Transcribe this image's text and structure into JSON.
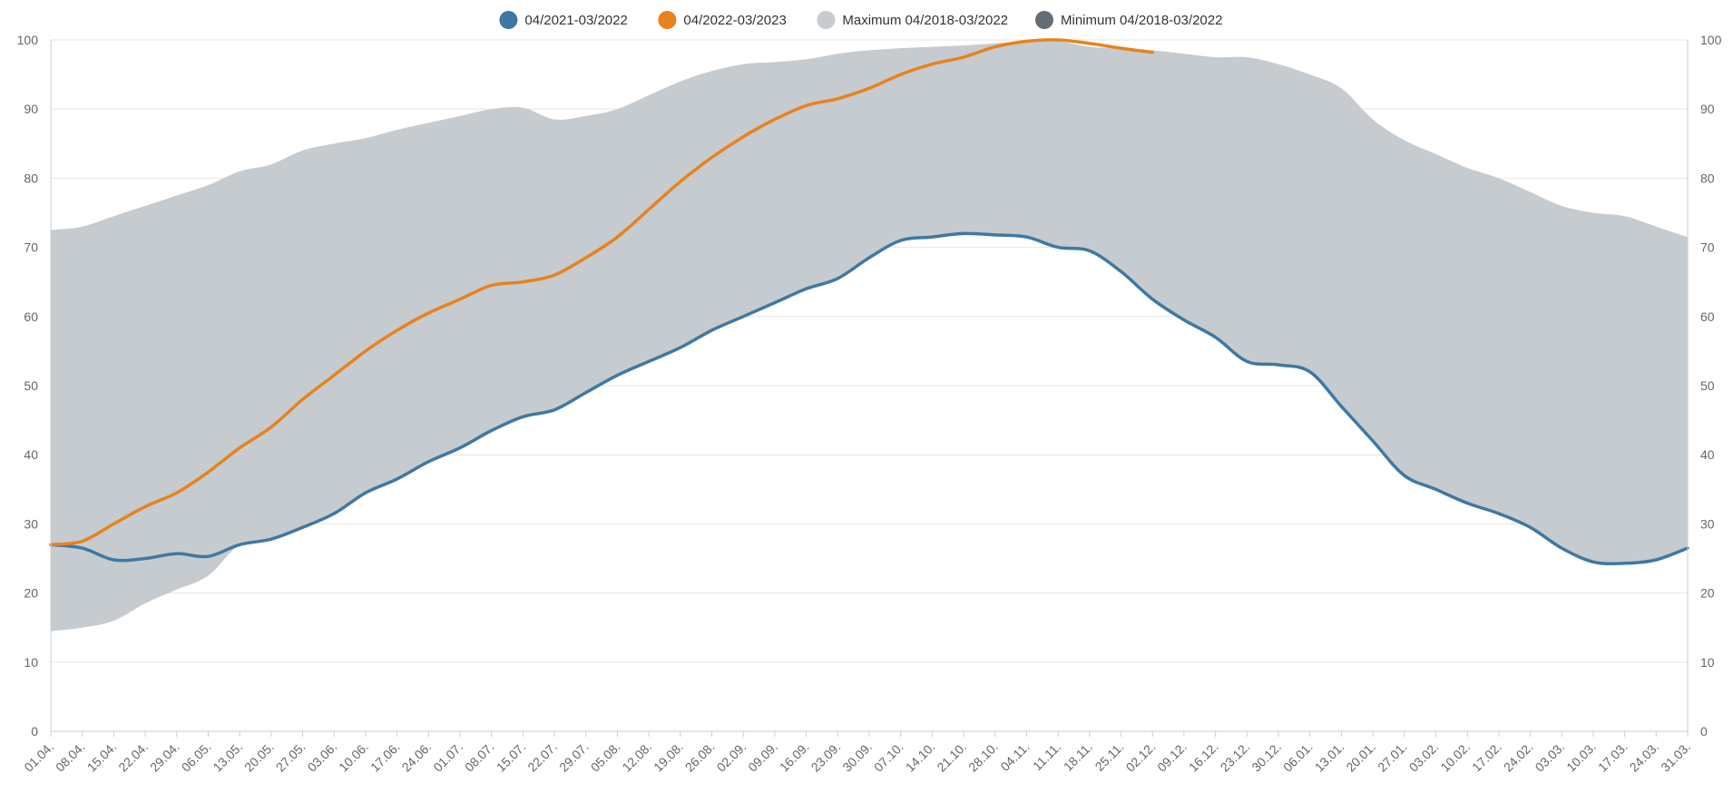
{
  "chart_data": {
    "type": "area",
    "title": "",
    "xlabel": "",
    "ylabel": "",
    "ylim": [
      0,
      100
    ],
    "yticks": [
      0,
      10,
      20,
      30,
      40,
      50,
      60,
      70,
      80,
      90,
      100
    ],
    "grid": true,
    "legend_position": "top-center",
    "x_tick_labels": [
      "01.04.",
      "08.04.",
      "15.04.",
      "22.04.",
      "29.04.",
      "06.05.",
      "13.05.",
      "20.05.",
      "27.05.",
      "03.06.",
      "10.06.",
      "17.06.",
      "24.06.",
      "01.07.",
      "08.07.",
      "15.07.",
      "22.07.",
      "29.07.",
      "05.08.",
      "12.08.",
      "19.08.",
      "26.08.",
      "02.09.",
      "09.09.",
      "16.09.",
      "23.09.",
      "30.09.",
      "07.10.",
      "14.10.",
      "21.10.",
      "28.10.",
      "04.11.",
      "11.11.",
      "18.11.",
      "25.11.",
      "02.12.",
      "09.12.",
      "16.12.",
      "23.12.",
      "30.12.",
      "06.01.",
      "13.01.",
      "20.01.",
      "27.01.",
      "03.02.",
      "10.02.",
      "17.02.",
      "24.02.",
      "03.03.",
      "10.03.",
      "17.03.",
      "24.03.",
      "31.03."
    ],
    "band": {
      "max_name": "Maximum 04/2018-03/2022",
      "min_name": "Minimum 04/2018-03/2022",
      "color": "#c5cbcf",
      "min_color": "#666e75",
      "max_values": [
        72.5,
        73.0,
        74.5,
        76.0,
        77.5,
        79.0,
        81.0,
        82.0,
        84.0,
        85.0,
        85.8,
        87.0,
        88.0,
        89.0,
        90.0,
        90.2,
        88.5,
        89.0,
        90.0,
        92.0,
        94.0,
        95.5,
        96.5,
        96.8,
        97.2,
        98.0,
        98.5,
        98.8,
        99.0,
        99.2,
        99.5,
        99.8,
        99.8,
        99.0,
        98.8,
        98.5,
        98.0,
        97.5,
        97.5,
        96.5,
        95.0,
        93.0,
        88.5,
        85.5,
        83.5,
        81.5,
        80.0,
        78.0,
        76.0,
        75.0,
        74.5,
        73.0,
        71.5
      ],
      "min_values": [
        14.5,
        15.0,
        16.0,
        18.5,
        20.5,
        22.5,
        27.0,
        27.8,
        29.5,
        31.5,
        34.5,
        36.5,
        39.0,
        41.0,
        43.5,
        45.5,
        46.5,
        49.0,
        51.5,
        53.5,
        55.5,
        58.0,
        60.0,
        62.0,
        64.0,
        65.5,
        68.5,
        71.0,
        71.5,
        72.0,
        71.8,
        71.5,
        70.0,
        69.5,
        66.5,
        62.5,
        59.5,
        57.0,
        53.5,
        53.0,
        52.0,
        47.0,
        42.0,
        37.0,
        35.0,
        33.0,
        31.5,
        29.5,
        26.5,
        24.5,
        24.3,
        24.8,
        26.5
      ]
    },
    "series": [
      {
        "name": "04/2021-03/2022",
        "color": "#3f78a3",
        "values": [
          27.0,
          26.5,
          24.8,
          25.0,
          25.7,
          25.3,
          27.0,
          27.8,
          29.5,
          31.5,
          34.5,
          36.5,
          39.0,
          41.0,
          43.5,
          45.5,
          46.5,
          49.0,
          51.5,
          53.5,
          55.5,
          58.0,
          60.0,
          62.0,
          64.0,
          65.5,
          68.5,
          71.0,
          71.5,
          72.0,
          71.8,
          71.5,
          70.0,
          69.5,
          66.5,
          62.5,
          59.5,
          57.0,
          53.5,
          53.0,
          52.0,
          47.0,
          42.0,
          37.0,
          35.0,
          33.0,
          31.5,
          29.5,
          26.5,
          24.5,
          24.3,
          24.8,
          26.5
        ]
      },
      {
        "name": "04/2022-03/2023",
        "color": "#e8821c",
        "values": [
          27.0,
          27.5,
          30.0,
          32.5,
          34.5,
          37.5,
          41.0,
          44.0,
          48.0,
          51.5,
          55.0,
          58.0,
          60.5,
          62.5,
          64.5,
          65.0,
          66.0,
          68.5,
          71.5,
          75.5,
          79.5,
          83.0,
          86.0,
          88.5,
          90.5,
          91.5,
          93.0,
          95.0,
          96.5,
          97.5,
          99.0,
          99.8,
          100.0,
          99.5,
          98.8,
          98.2
        ]
      }
    ]
  }
}
